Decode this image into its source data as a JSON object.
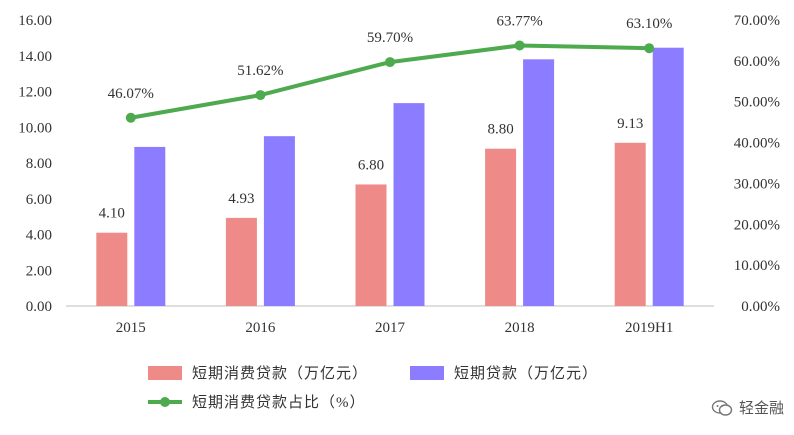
{
  "chart_data": {
    "type": "bar",
    "categories": [
      "2015",
      "2016",
      "2017",
      "2018",
      "2019H1"
    ],
    "series": [
      {
        "name": "短期消费贷款（万亿元）",
        "type": "bar",
        "axis": "left",
        "color": "#EE8A87",
        "values": [
          4.1,
          4.93,
          6.8,
          8.8,
          9.13
        ],
        "labels": [
          "4.10",
          "4.93",
          "6.80",
          "8.80",
          "9.13"
        ]
      },
      {
        "name": "短期贷款（万亿元）",
        "type": "bar",
        "axis": "left",
        "color": "#8C7CFF",
        "values": [
          8.9,
          9.5,
          11.35,
          13.8,
          14.45
        ],
        "labels": []
      },
      {
        "name": "短期消费贷款占比（%）",
        "type": "line",
        "axis": "right",
        "color": "#4EAA4E",
        "values": [
          46.07,
          51.62,
          59.7,
          63.77,
          63.1
        ],
        "labels": [
          "46.07%",
          "51.62%",
          "59.70%",
          "63.77%",
          "63.10%"
        ]
      }
    ],
    "y_left": {
      "ylim": [
        0,
        16
      ],
      "ticks": [
        "0.00",
        "2.00",
        "4.00",
        "6.00",
        "8.00",
        "10.00",
        "12.00",
        "14.00",
        "16.00"
      ]
    },
    "y_right": {
      "ylim": [
        0,
        70
      ],
      "ticks": [
        "0.00%",
        "10.00%",
        "20.00%",
        "30.00%",
        "40.00%",
        "50.00%",
        "60.00%",
        "70.00%"
      ]
    },
    "title": "",
    "xlabel": "",
    "ylabel": "",
    "grid": false,
    "legend_position": "bottom"
  },
  "watermark": {
    "text": "轻金融",
    "icon": "wechat-bubble-icon"
  }
}
